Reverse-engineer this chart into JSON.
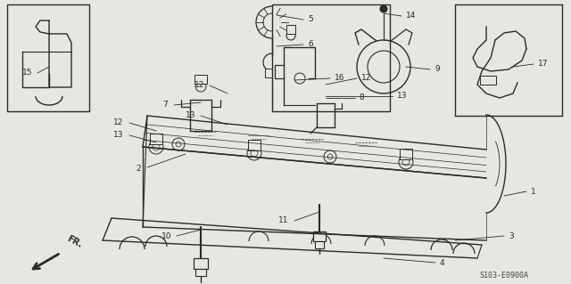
{
  "bg_color": "#e8e6e0",
  "lc": "#2a2a2a",
  "watermark": "S103-E0900A",
  "fig_w": 6.4,
  "fig_h": 3.19,
  "dpi": 100
}
